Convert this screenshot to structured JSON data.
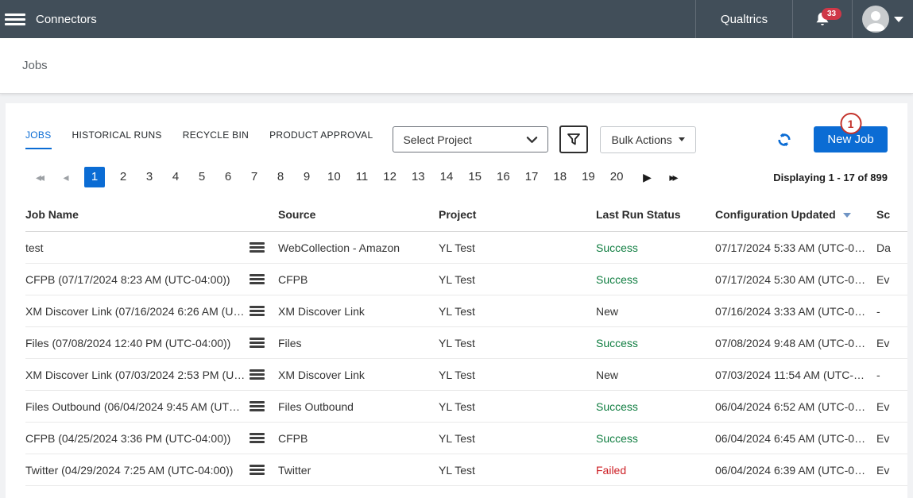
{
  "topbar": {
    "app_title": "Connectors",
    "brand": "Qualtrics",
    "notification_count": "33"
  },
  "page": {
    "title": "Jobs"
  },
  "tabs": [
    {
      "label": "JOBS",
      "active": true
    },
    {
      "label": "HISTORICAL RUNS",
      "active": false
    },
    {
      "label": "RECYCLE BIN",
      "active": false
    },
    {
      "label": "PRODUCT APPROVAL",
      "active": false
    }
  ],
  "toolbar": {
    "project_select_value": "Select Project",
    "bulk_actions_label": "Bulk Actions",
    "new_job_label": "New Job",
    "annotation_badge": "1"
  },
  "pagination": {
    "pages": [
      "1",
      "2",
      "3",
      "4",
      "5",
      "6",
      "7",
      "8",
      "9",
      "10",
      "11",
      "12",
      "13",
      "14",
      "15",
      "16",
      "17",
      "18",
      "19",
      "20"
    ],
    "active_page": "1",
    "summary": "Displaying 1 - 17 of 899"
  },
  "table": {
    "columns": [
      {
        "label": "Job Name"
      },
      {
        "label": "Source"
      },
      {
        "label": "Project"
      },
      {
        "label": "Last Run Status"
      },
      {
        "label": "Configuration Updated",
        "sorted": "desc"
      },
      {
        "label": "Sc"
      }
    ],
    "rows": [
      {
        "job_name": "test",
        "source": "WebCollection - Amazon",
        "project": "YL Test",
        "status": "Success",
        "status_type": "success",
        "updated": "07/17/2024 5:33 AM (UTC-0…",
        "schedule": "Da"
      },
      {
        "job_name": "CFPB (07/17/2024 8:23 AM (UTC-04:00))",
        "source": "CFPB",
        "project": "YL Test",
        "status": "Success",
        "status_type": "success",
        "updated": "07/17/2024 5:30 AM (UTC-0…",
        "schedule": "Ev"
      },
      {
        "job_name": "XM Discover Link (07/16/2024 6:26 AM (U…",
        "source": "XM Discover Link",
        "project": "YL Test",
        "status": "New",
        "status_type": "new",
        "updated": "07/16/2024 3:33 AM (UTC-0…",
        "schedule": "-"
      },
      {
        "job_name": "Files (07/08/2024 12:40 PM (UTC-04:00))",
        "source": "Files",
        "project": "YL Test",
        "status": "Success",
        "status_type": "success",
        "updated": "07/08/2024 9:48 AM (UTC-0…",
        "schedule": "Ev"
      },
      {
        "job_name": "XM Discover Link (07/03/2024 2:53 PM (U…",
        "source": "XM Discover Link",
        "project": "YL Test",
        "status": "New",
        "status_type": "new",
        "updated": "07/03/2024 11:54 AM (UTC-…",
        "schedule": "-"
      },
      {
        "job_name": "Files Outbound (06/04/2024 9:45 AM (UT…",
        "source": "Files Outbound",
        "project": "YL Test",
        "status": "Success",
        "status_type": "success",
        "updated": "06/04/2024 6:52 AM (UTC-0…",
        "schedule": "Ev"
      },
      {
        "job_name": "CFPB (04/25/2024 3:36 PM (UTC-04:00))",
        "source": "CFPB",
        "project": "YL Test",
        "status": "Success",
        "status_type": "success",
        "updated": "06/04/2024 6:45 AM (UTC-0…",
        "schedule": "Ev"
      },
      {
        "job_name": "Twitter (04/29/2024 7:25 AM (UTC-04:00))",
        "source": "Twitter",
        "project": "YL Test",
        "status": "Failed",
        "status_type": "failed",
        "updated": "06/04/2024 6:39 AM (UTC-0…",
        "schedule": "Ev"
      }
    ]
  },
  "colors": {
    "topbar_bg": "#414e59",
    "accent_blue": "#0b6cd4",
    "success_green": "#0f7d40",
    "failed_red": "#cd2026",
    "annotation_red": "#c4342d",
    "badge_red": "#cf3848"
  }
}
